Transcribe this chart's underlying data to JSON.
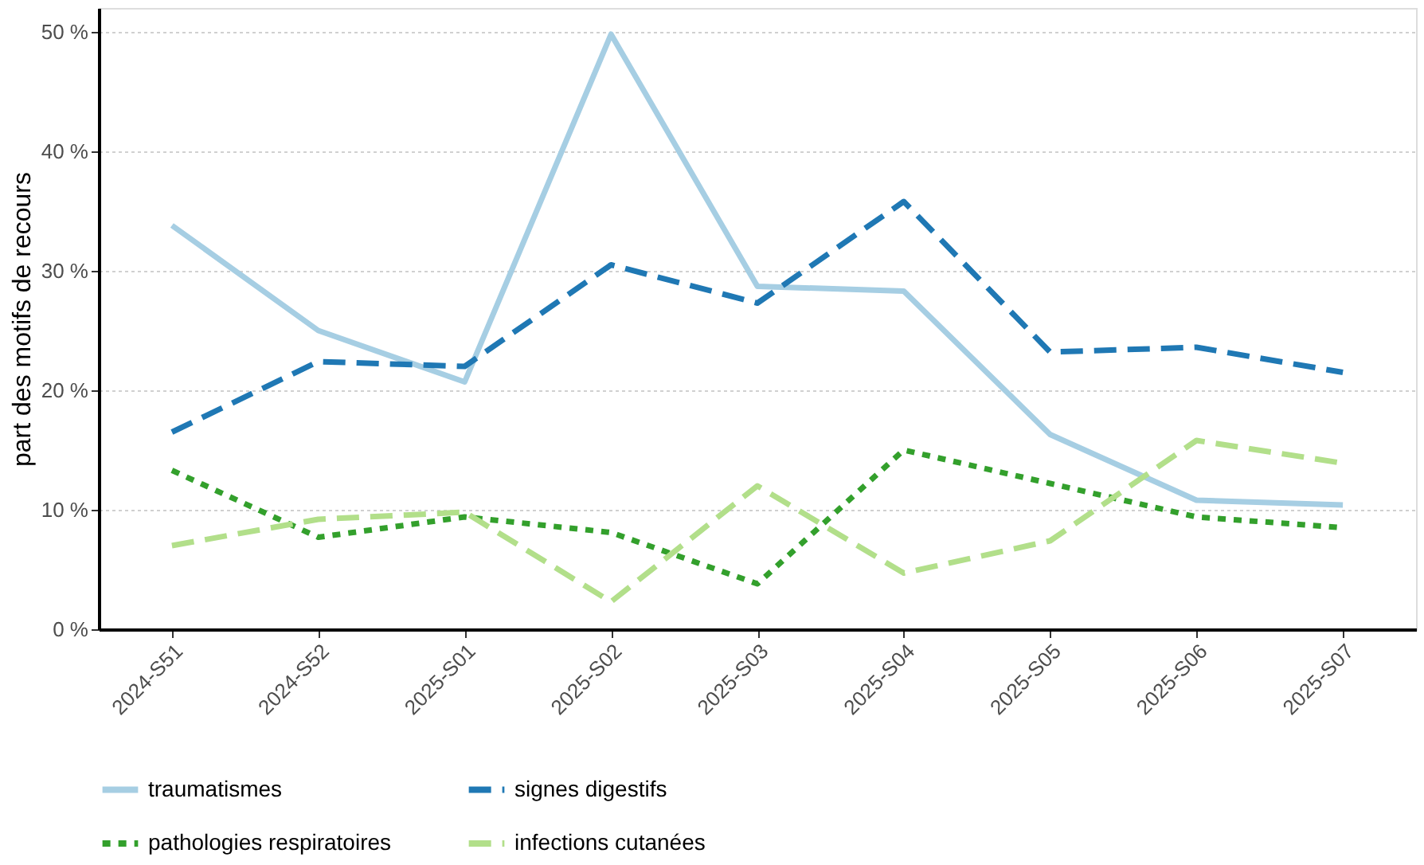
{
  "chart_data": {
    "type": "line",
    "ylabel": "part des motifs de recours",
    "categories": [
      "2024-S51",
      "2024-S52",
      "2025-S01",
      "2025-S02",
      "2025-S03",
      "2025-S04",
      "2025-S05",
      "2025-S06",
      "2025-S07"
    ],
    "series": [
      {
        "name": "traumatismes",
        "color": "#a6cee3",
        "line_style": "solid",
        "values": [
          33.8,
          25.0,
          20.7,
          49.8,
          28.7,
          28.3,
          16.3,
          10.8,
          10.4
        ]
      },
      {
        "name": "signes digestifs",
        "color": "#1f78b4",
        "line_style": "dashed",
        "values": [
          16.5,
          22.4,
          22.0,
          30.5,
          27.3,
          35.8,
          23.2,
          23.6,
          21.5
        ]
      },
      {
        "name": "pathologies respiratoires",
        "color": "#33a02c",
        "line_style": "dotted",
        "values": [
          13.3,
          7.7,
          9.4,
          8.1,
          3.8,
          15.0,
          12.2,
          9.4,
          8.5
        ]
      },
      {
        "name": "infections cutanées",
        "color": "#b2df8a",
        "line_style": "dashed",
        "values": [
          7.0,
          9.2,
          9.8,
          2.3,
          12.0,
          4.7,
          7.4,
          15.8,
          13.9
        ]
      }
    ],
    "ylim": [
      0,
      52
    ],
    "yticks": [
      {
        "value": 0,
        "label": "0 %"
      },
      {
        "value": 10,
        "label": "10 %"
      },
      {
        "value": 20,
        "label": "20 %"
      },
      {
        "value": 30,
        "label": "30 %"
      },
      {
        "value": 40,
        "label": "40 %"
      },
      {
        "value": 50,
        "label": "50 %"
      }
    ],
    "grid": "y",
    "legend": "bottom",
    "marker": "none"
  }
}
